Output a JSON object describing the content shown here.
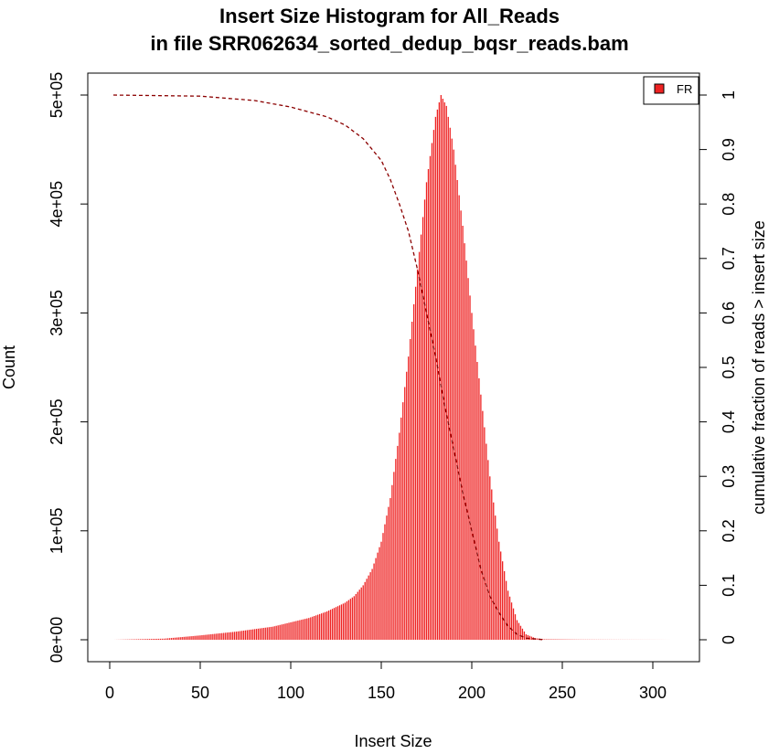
{
  "chart_data": {
    "type": "bar",
    "title_line1": "Insert Size Histogram for All_Reads",
    "title_line2": "in file SRR062634_sorted_dedup_bqsr_reads.bam",
    "xlabel": "Insert Size",
    "ylabel": "Count",
    "ylabel_right": "cumulative fraction of reads > insert size",
    "xlim": [
      0,
      320
    ],
    "ylim": [
      0,
      500000
    ],
    "y2lim": [
      0,
      1
    ],
    "x_ticks": [
      "0",
      "50",
      "100",
      "150",
      "200",
      "250",
      "300"
    ],
    "y_ticks": [
      "0e+00",
      "1e+05",
      "2e+05",
      "3e+05",
      "4e+05",
      "5e+05"
    ],
    "y2_ticks": [
      "0",
      "0.1",
      "0.2",
      "0.3",
      "0.4",
      "0.5",
      "0.6",
      "0.7",
      "0.8",
      "0.9",
      "1"
    ],
    "legend": {
      "label": "FR",
      "position": "top-right"
    },
    "grid": false,
    "colors": {
      "bars": "#ee2222",
      "cumulative_line": "#8b0000"
    },
    "histogram_peak": {
      "x": 183,
      "y": 500000
    },
    "histogram_points": [
      [
        2,
        0
      ],
      [
        30,
        1000
      ],
      [
        50,
        4000
      ],
      [
        70,
        7500
      ],
      [
        90,
        12000
      ],
      [
        100,
        16000
      ],
      [
        110,
        20000
      ],
      [
        120,
        26000
      ],
      [
        130,
        34000
      ],
      [
        135,
        40000
      ],
      [
        140,
        50000
      ],
      [
        145,
        65000
      ],
      [
        150,
        90000
      ],
      [
        155,
        130000
      ],
      [
        160,
        190000
      ],
      [
        165,
        260000
      ],
      [
        170,
        340000
      ],
      [
        175,
        420000
      ],
      [
        180,
        480000
      ],
      [
        183,
        500000
      ],
      [
        186,
        490000
      ],
      [
        190,
        450000
      ],
      [
        195,
        380000
      ],
      [
        200,
        300000
      ],
      [
        205,
        225000
      ],
      [
        210,
        150000
      ],
      [
        215,
        90000
      ],
      [
        220,
        45000
      ],
      [
        225,
        18000
      ],
      [
        230,
        5000
      ],
      [
        235,
        1500
      ],
      [
        240,
        500
      ],
      [
        260,
        200
      ],
      [
        280,
        100
      ],
      [
        300,
        50
      ],
      [
        313,
        0
      ]
    ],
    "cumulative_series": {
      "name": "cumulative fraction of reads > insert size",
      "x": [
        2,
        50,
        80,
        100,
        120,
        130,
        140,
        145,
        150,
        155,
        160,
        165,
        170,
        175,
        180,
        185,
        190,
        195,
        200,
        205,
        210,
        215,
        220,
        225,
        230,
        240
      ],
      "y": [
        1.0,
        0.998,
        0.99,
        0.978,
        0.96,
        0.945,
        0.92,
        0.9,
        0.88,
        0.845,
        0.8,
        0.75,
        0.68,
        0.6,
        0.52,
        0.43,
        0.35,
        0.27,
        0.2,
        0.13,
        0.08,
        0.05,
        0.025,
        0.01,
        0.003,
        0.0
      ]
    }
  }
}
